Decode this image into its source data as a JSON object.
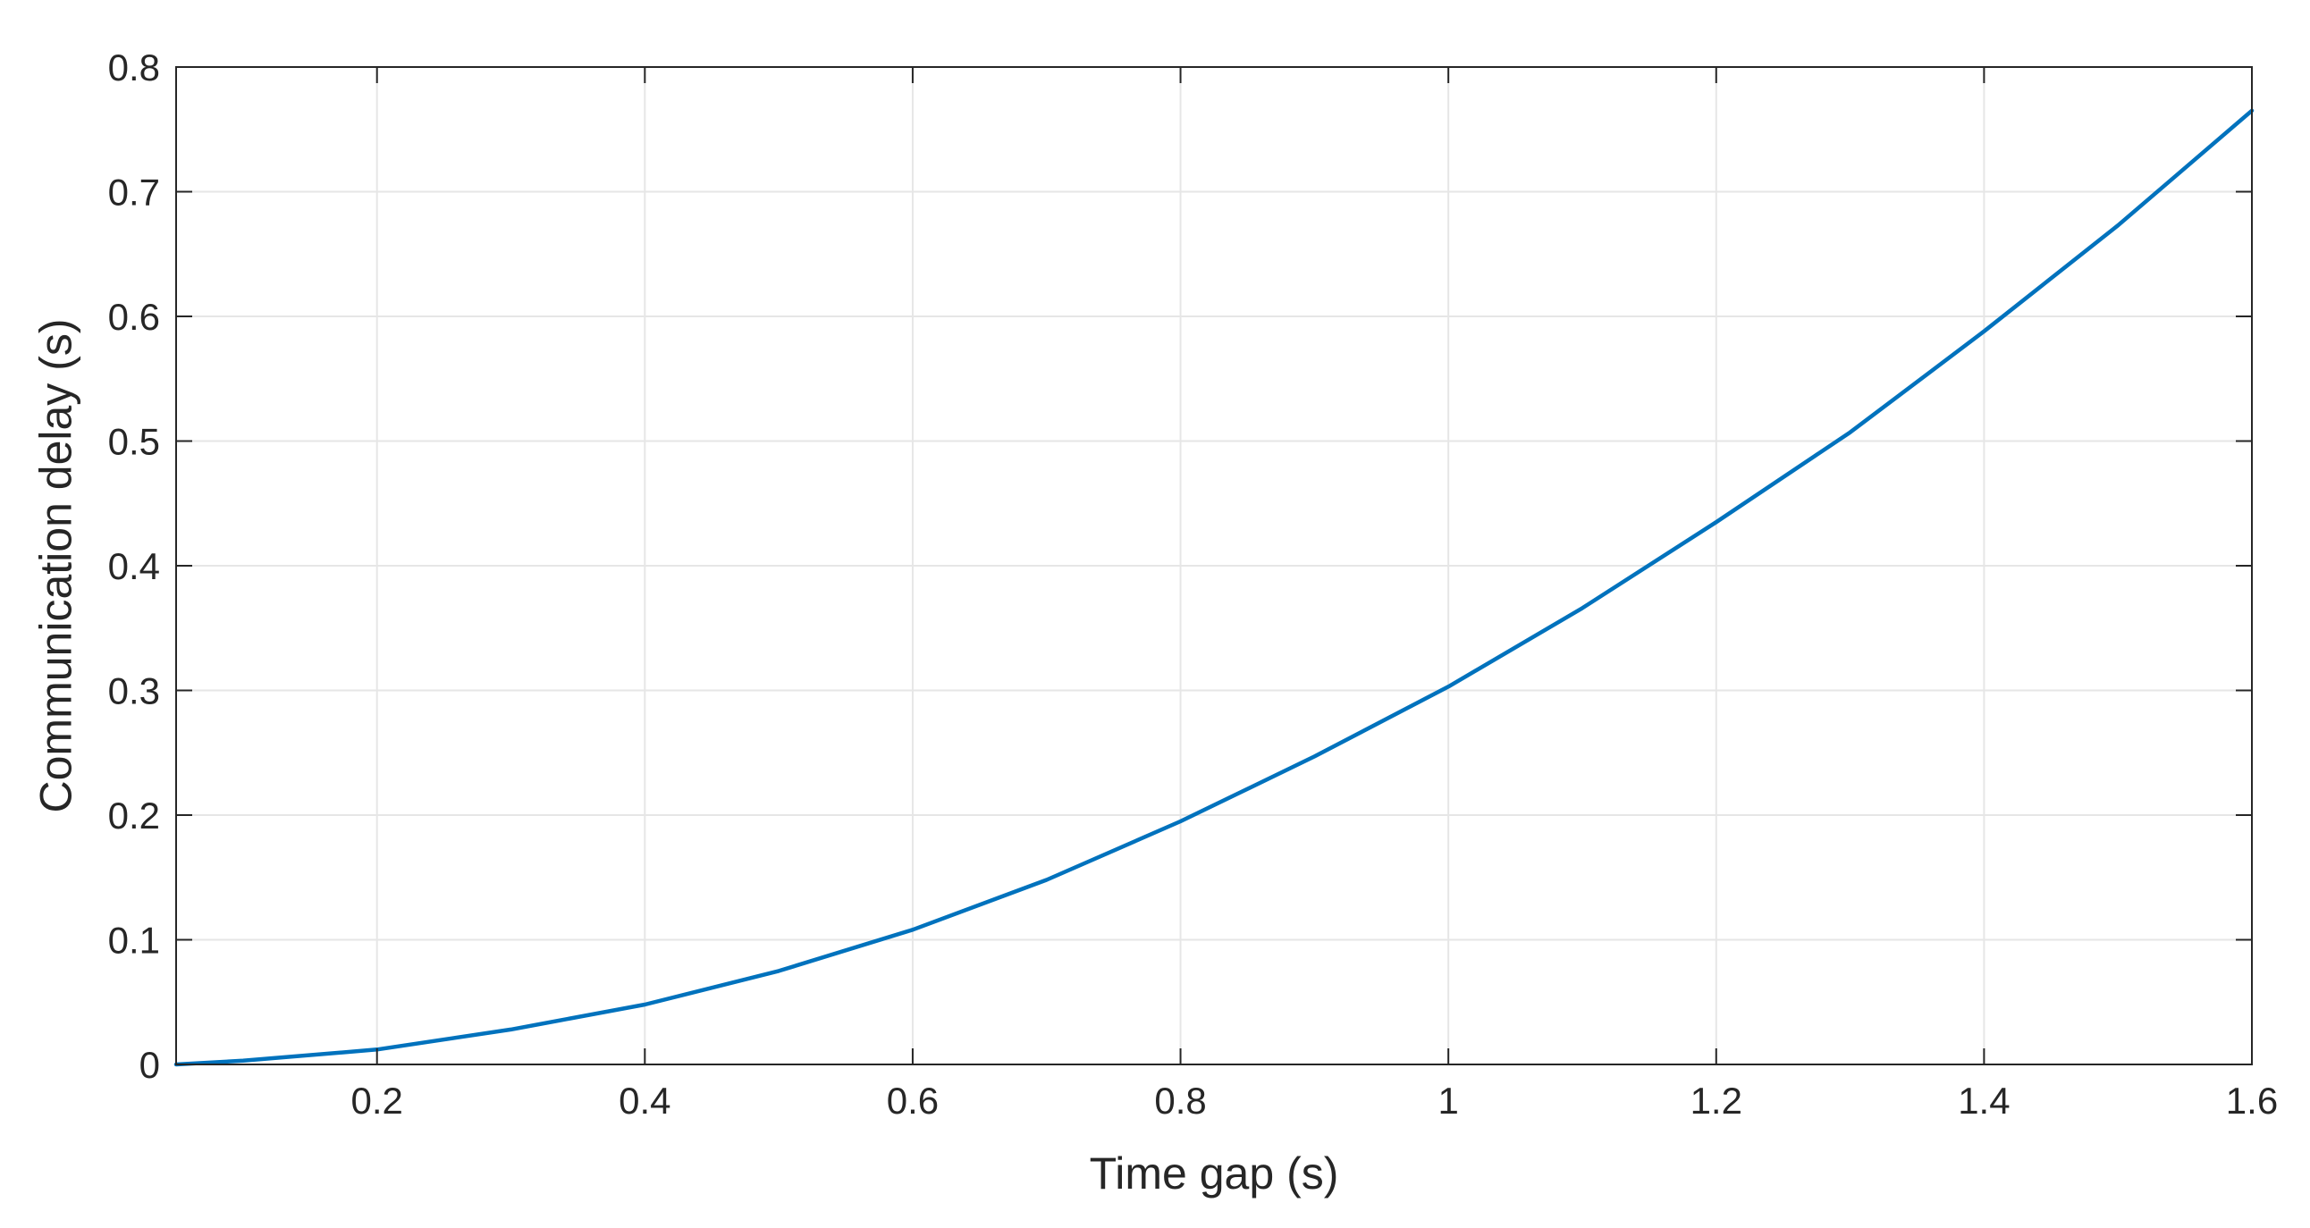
{
  "chart_data": {
    "type": "line",
    "xlabel": "Time gap (s)",
    "ylabel": "Communication delay (s)",
    "xlim": [
      0.05,
      1.6
    ],
    "ylim": [
      0,
      0.8
    ],
    "xticks": [
      0.2,
      0.4,
      0.6,
      0.8,
      1.0,
      1.2,
      1.4,
      1.6
    ],
    "xtick_labels": [
      "0.2",
      "0.4",
      "0.6",
      "0.8",
      "1",
      "1.2",
      "1.4",
      "1.6"
    ],
    "yticks": [
      0,
      0.1,
      0.2,
      0.3,
      0.4,
      0.5,
      0.6,
      0.7,
      0.8
    ],
    "ytick_labels": [
      "0",
      "0.1",
      "0.2",
      "0.3",
      "0.4",
      "0.5",
      "0.6",
      "0.7",
      "0.8"
    ],
    "grid": true,
    "series": [
      {
        "color": "#0072BD",
        "x": [
          0.05,
          0.1,
          0.2,
          0.3,
          0.4,
          0.5,
          0.6,
          0.7,
          0.8,
          0.9,
          1.0,
          1.1,
          1.2,
          1.3,
          1.4,
          1.5,
          1.6
        ],
        "y": [
          0.0,
          0.003,
          0.012,
          0.028,
          0.048,
          0.075,
          0.108,
          0.148,
          0.195,
          0.247,
          0.303,
          0.366,
          0.435,
          0.507,
          0.588,
          0.673,
          0.765
        ]
      }
    ]
  }
}
